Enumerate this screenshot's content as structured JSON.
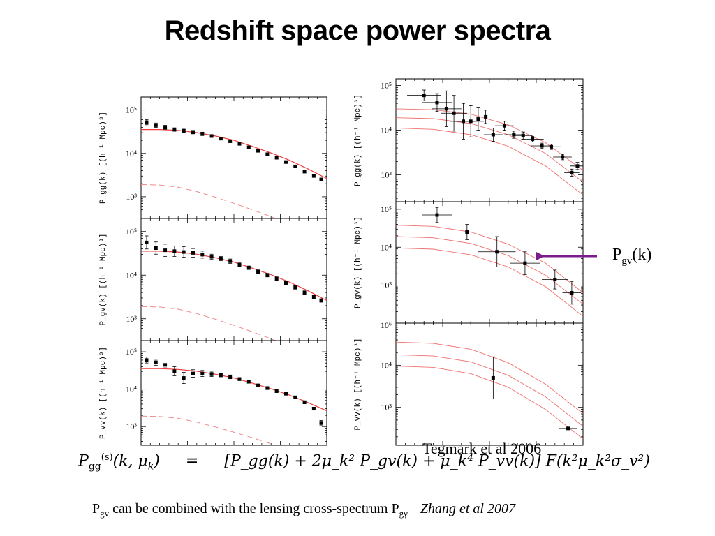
{
  "title": "Redshift space power spectra",
  "arrow_label": {
    "main": "P",
    "sub": "gv",
    "tail": "(k)"
  },
  "equation": {
    "lhs": "P",
    "lhs_sub": "gg",
    "lhs_sup": "(s)",
    "lhs_args": "(k, μ",
    "lhs_args_sub": "k",
    "lhs_args_end": ")",
    "eq": "=",
    "rhs": "[P_gg(k) + 2μ_k² P_gv(k) + μ_k⁴ P_vv(k)] F(k²μ_k²σ_v²)"
  },
  "caption": {
    "prefix_main": "P",
    "prefix_sub": "gv",
    "text": " can be combined with the lensing cross-spectrum P",
    "suffix_sub": "gγ",
    "citation": "Zhang et al 2007"
  },
  "overlap_text": "Tegmark et al 2006",
  "colors": {
    "model_line": "#ee3b3b",
    "data": "#000000",
    "arrow": "#7a1c8c"
  },
  "chart_data": [
    {
      "type": "scatter",
      "panel": "left-top",
      "ylabel": "P_gg(k) [(h⁻¹ Mpc)³]",
      "yticks": [
        "10⁵",
        "10⁴",
        "10³"
      ],
      "ytick_values": [
        100000,
        10000,
        1000
      ],
      "ylim_log10": [
        2.5,
        5.3
      ],
      "xlim": [
        0,
        1
      ],
      "log_y": true,
      "points": [
        [
          0.03,
          4.72,
          0.06
        ],
        [
          0.08,
          4.65,
          0.05
        ],
        [
          0.13,
          4.6,
          0.05
        ],
        [
          0.18,
          4.55,
          0.04
        ],
        [
          0.23,
          4.52,
          0.04
        ],
        [
          0.28,
          4.49,
          0.04
        ],
        [
          0.33,
          4.45,
          0.04
        ],
        [
          0.38,
          4.4,
          0.03
        ],
        [
          0.43,
          4.34,
          0.03
        ],
        [
          0.48,
          4.28,
          0.03
        ],
        [
          0.53,
          4.22,
          0.03
        ],
        [
          0.58,
          4.14,
          0.03
        ],
        [
          0.63,
          4.06,
          0.03
        ],
        [
          0.68,
          3.98,
          0.03
        ],
        [
          0.73,
          3.9,
          0.03
        ],
        [
          0.78,
          3.8,
          0.03
        ],
        [
          0.83,
          3.7,
          0.03
        ],
        [
          0.88,
          3.58,
          0.03
        ],
        [
          0.93,
          3.48,
          0.03
        ],
        [
          0.97,
          3.4,
          0.03
        ]
      ],
      "model_solid": [
        [
          0,
          4.55
        ],
        [
          0.1,
          4.55
        ],
        [
          0.2,
          4.53
        ],
        [
          0.3,
          4.48
        ],
        [
          0.4,
          4.4
        ],
        [
          0.5,
          4.3
        ],
        [
          0.6,
          4.16
        ],
        [
          0.7,
          4.01
        ],
        [
          0.8,
          3.84
        ],
        [
          0.9,
          3.64
        ],
        [
          1.0,
          3.42
        ]
      ],
      "model_dashed": [
        [
          0,
          3.28
        ],
        [
          0.1,
          3.27
        ],
        [
          0.2,
          3.22
        ],
        [
          0.3,
          3.12
        ],
        [
          0.4,
          2.99
        ],
        [
          0.5,
          2.85
        ],
        [
          0.6,
          2.7
        ],
        [
          0.7,
          2.54
        ],
        [
          0.8,
          2.37
        ],
        [
          0.9,
          2.18
        ],
        [
          1.0,
          1.98
        ]
      ]
    },
    {
      "type": "scatter",
      "panel": "left-middle",
      "ylabel": "P_gv(k) [(h⁻¹ Mpc)³]",
      "yticks": [
        "10⁵",
        "10⁴",
        "10³"
      ],
      "ytick_values": [
        100000,
        10000,
        1000
      ],
      "ylim_log10": [
        2.5,
        5.3
      ],
      "xlim": [
        0,
        1
      ],
      "log_y": true,
      "points": [
        [
          0.03,
          4.75,
          0.15
        ],
        [
          0.08,
          4.62,
          0.14
        ],
        [
          0.13,
          4.57,
          0.14
        ],
        [
          0.18,
          4.55,
          0.12
        ],
        [
          0.23,
          4.53,
          0.12
        ],
        [
          0.28,
          4.51,
          0.1
        ],
        [
          0.33,
          4.47,
          0.08
        ],
        [
          0.38,
          4.42,
          0.06
        ],
        [
          0.43,
          4.38,
          0.05
        ],
        [
          0.48,
          4.32,
          0.05
        ],
        [
          0.53,
          4.24,
          0.04
        ],
        [
          0.58,
          4.17,
          0.04
        ],
        [
          0.63,
          4.08,
          0.04
        ],
        [
          0.68,
          4.0,
          0.04
        ],
        [
          0.73,
          3.92,
          0.04
        ],
        [
          0.78,
          3.82,
          0.04
        ],
        [
          0.83,
          3.72,
          0.04
        ],
        [
          0.88,
          3.6,
          0.04
        ],
        [
          0.93,
          3.5,
          0.04
        ],
        [
          0.97,
          3.42,
          0.04
        ]
      ],
      "model_solid": [
        [
          0,
          4.55
        ],
        [
          0.1,
          4.55
        ],
        [
          0.2,
          4.53
        ],
        [
          0.3,
          4.48
        ],
        [
          0.4,
          4.4
        ],
        [
          0.5,
          4.3
        ],
        [
          0.6,
          4.16
        ],
        [
          0.7,
          4.01
        ],
        [
          0.8,
          3.84
        ],
        [
          0.9,
          3.64
        ],
        [
          1.0,
          3.42
        ]
      ],
      "model_dashed": [
        [
          0,
          3.28
        ],
        [
          0.1,
          3.27
        ],
        [
          0.2,
          3.22
        ],
        [
          0.3,
          3.12
        ],
        [
          0.4,
          2.99
        ],
        [
          0.5,
          2.85
        ],
        [
          0.6,
          2.7
        ],
        [
          0.7,
          2.54
        ],
        [
          0.8,
          2.37
        ],
        [
          0.9,
          2.18
        ],
        [
          1.0,
          1.98
        ]
      ]
    },
    {
      "type": "scatter",
      "panel": "left-bottom",
      "ylabel": "P_vv(k) [(h⁻¹ Mpc)³]",
      "yticks": [
        "10⁵",
        "10⁴",
        "10³"
      ],
      "ytick_values": [
        100000,
        10000,
        1000
      ],
      "ylim_log10": [
        2.5,
        5.3
      ],
      "xlim": [
        0,
        1
      ],
      "log_y": true,
      "points": [
        [
          0.03,
          4.78,
          0.08
        ],
        [
          0.08,
          4.72,
          0.08
        ],
        [
          0.13,
          4.65,
          0.08
        ],
        [
          0.18,
          4.48,
          0.12
        ],
        [
          0.23,
          4.3,
          0.15
        ],
        [
          0.28,
          4.42,
          0.1
        ],
        [
          0.33,
          4.42,
          0.08
        ],
        [
          0.38,
          4.4,
          0.06
        ],
        [
          0.43,
          4.38,
          0.05
        ],
        [
          0.48,
          4.33,
          0.05
        ],
        [
          0.53,
          4.27,
          0.04
        ],
        [
          0.58,
          4.2,
          0.04
        ],
        [
          0.63,
          4.1,
          0.04
        ],
        [
          0.68,
          4.03,
          0.04
        ],
        [
          0.73,
          3.95,
          0.04
        ],
        [
          0.78,
          3.88,
          0.04
        ],
        [
          0.83,
          3.78,
          0.04
        ],
        [
          0.88,
          3.65,
          0.04
        ],
        [
          0.93,
          3.48,
          0.04
        ],
        [
          0.97,
          3.1,
          0.06
        ]
      ],
      "model_solid": [
        [
          0,
          4.55
        ],
        [
          0.1,
          4.55
        ],
        [
          0.2,
          4.53
        ],
        [
          0.3,
          4.48
        ],
        [
          0.4,
          4.4
        ],
        [
          0.5,
          4.3
        ],
        [
          0.6,
          4.16
        ],
        [
          0.7,
          4.01
        ],
        [
          0.8,
          3.84
        ],
        [
          0.9,
          3.64
        ],
        [
          1.0,
          3.42
        ]
      ],
      "model_dashed": [
        [
          0,
          3.28
        ],
        [
          0.1,
          3.27
        ],
        [
          0.2,
          3.22
        ],
        [
          0.3,
          3.12
        ],
        [
          0.4,
          2.99
        ],
        [
          0.5,
          2.85
        ],
        [
          0.6,
          2.7
        ],
        [
          0.7,
          2.54
        ],
        [
          0.8,
          2.37
        ],
        [
          0.9,
          2.18
        ],
        [
          1.0,
          1.98
        ]
      ]
    },
    {
      "type": "scatter",
      "panel": "right-top",
      "ylabel": "P_gg(k) [(h⁻¹ Mpc)³]",
      "yticks": [
        "10⁵",
        "10⁴",
        "10³"
      ],
      "ytick_values": [
        100000,
        10000,
        1000
      ],
      "ylim_log10": [
        2.4,
        5.15
      ],
      "xlim": [
        0,
        1
      ],
      "log_y": true,
      "points": [
        [
          0.15,
          4.78,
          0.12,
          0.09
        ],
        [
          0.22,
          4.62,
          0.2,
          0.08
        ],
        [
          0.27,
          4.48,
          0.4,
          0.08
        ],
        [
          0.31,
          4.38,
          0.4,
          0.07
        ],
        [
          0.36,
          4.2,
          0.4,
          0.07
        ],
        [
          0.4,
          4.2,
          0.35,
          0.07
        ],
        [
          0.44,
          4.25,
          0.25,
          0.07
        ],
        [
          0.48,
          4.3,
          0.15,
          0.07
        ],
        [
          0.52,
          3.9,
          0.15,
          0.05
        ],
        [
          0.58,
          4.1,
          0.1,
          0.05
        ],
        [
          0.63,
          3.9,
          0.08,
          0.05
        ],
        [
          0.68,
          3.88,
          0.08,
          0.05
        ],
        [
          0.73,
          3.8,
          0.06,
          0.06
        ],
        [
          0.78,
          3.65,
          0.06,
          0.06
        ],
        [
          0.83,
          3.63,
          0.06,
          0.05
        ],
        [
          0.89,
          3.4,
          0.06,
          0.05
        ],
        [
          0.94,
          3.05,
          0.08,
          0.04
        ],
        [
          0.97,
          3.2,
          0.08,
          0.04
        ]
      ],
      "model_curves": [
        [
          [
            0,
            4.48
          ],
          [
            0.2,
            4.46
          ],
          [
            0.4,
            4.36
          ],
          [
            0.6,
            4.12
          ],
          [
            0.8,
            3.72
          ],
          [
            1.0,
            3.1
          ]
        ],
        [
          [
            0,
            4.28
          ],
          [
            0.2,
            4.26
          ],
          [
            0.4,
            4.15
          ],
          [
            0.6,
            3.9
          ],
          [
            0.8,
            3.48
          ],
          [
            1.0,
            2.84
          ]
        ],
        [
          [
            0,
            4.05
          ],
          [
            0.2,
            4.02
          ],
          [
            0.4,
            3.9
          ],
          [
            0.6,
            3.64
          ],
          [
            0.8,
            3.2
          ],
          [
            1.0,
            2.55
          ]
        ]
      ]
    },
    {
      "type": "scatter",
      "panel": "right-middle",
      "ylabel": "P_gv(k) [(h⁻¹ Mpc)³]",
      "yticks": [
        "10⁵",
        "10⁴",
        "10³"
      ],
      "ytick_values": [
        100000,
        10000,
        1000
      ],
      "ylim_log10": [
        2.0,
        5.2
      ],
      "xlim": [
        0,
        1
      ],
      "log_y": true,
      "points": [
        [
          0.22,
          4.85,
          0.2,
          0.08
        ],
        [
          0.38,
          4.4,
          0.2,
          0.07
        ],
        [
          0.54,
          3.88,
          0.4,
          0.1
        ],
        [
          0.69,
          3.58,
          0.3,
          0.08
        ],
        [
          0.85,
          3.15,
          0.25,
          0.07
        ],
        [
          0.94,
          2.8,
          0.3,
          0.05
        ]
      ],
      "model_curves": [
        [
          [
            0,
            4.58
          ],
          [
            0.2,
            4.55
          ],
          [
            0.4,
            4.4
          ],
          [
            0.6,
            4.08
          ],
          [
            0.8,
            3.58
          ],
          [
            1.0,
            2.8
          ]
        ],
        [
          [
            0,
            4.28
          ],
          [
            0.2,
            4.25
          ],
          [
            0.4,
            4.1
          ],
          [
            0.6,
            3.78
          ],
          [
            0.8,
            3.26
          ],
          [
            1.0,
            2.5
          ]
        ],
        [
          [
            0,
            3.98
          ],
          [
            0.2,
            3.95
          ],
          [
            0.4,
            3.8
          ],
          [
            0.6,
            3.48
          ],
          [
            0.8,
            2.96
          ],
          [
            1.0,
            2.18
          ]
        ]
      ]
    },
    {
      "type": "scatter",
      "panel": "right-bottom",
      "ylabel": "P_vv(k) [(h⁻¹ Mpc)³]",
      "yticks": [
        "10⁶",
        "10⁴",
        "10³"
      ],
      "ytick_values": [
        1000000,
        10000,
        1000
      ],
      "ylim_log10": [
        2.1,
        5.0
      ],
      "xlim": [
        0,
        1
      ],
      "log_y": true,
      "points": [
        [
          0.52,
          3.7,
          0.5,
          0.25
        ],
        [
          0.92,
          2.5,
          0.6,
          0.05
        ]
      ],
      "model_curves": [
        [
          [
            0,
            4.55
          ],
          [
            0.2,
            4.52
          ],
          [
            0.4,
            4.38
          ],
          [
            0.6,
            4.06
          ],
          [
            0.8,
            3.55
          ],
          [
            1.0,
            2.85
          ]
        ],
        [
          [
            0,
            4.25
          ],
          [
            0.2,
            4.22
          ],
          [
            0.4,
            4.08
          ],
          [
            0.6,
            3.76
          ],
          [
            0.8,
            3.25
          ],
          [
            1.0,
            2.55
          ]
        ],
        [
          [
            0,
            3.98
          ],
          [
            0.2,
            3.95
          ],
          [
            0.4,
            3.8
          ],
          [
            0.6,
            3.48
          ],
          [
            0.8,
            2.95
          ],
          [
            1.0,
            2.25
          ]
        ]
      ]
    }
  ]
}
